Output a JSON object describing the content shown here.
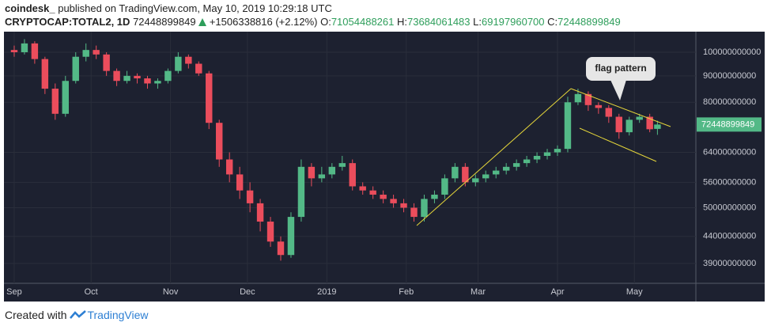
{
  "header": {
    "author": "coindesk_",
    "published": "published on TradingView.com, May 10, 2019 10:29:18 UTC",
    "symbol": "CRYPTOCAP:TOTAL2, 1D",
    "change": "+1506338816 (+2.12%)",
    "o_label": "O:",
    "h_label": "H:",
    "l_label": "L:",
    "c_label": "C:"
  },
  "chart_data": {
    "type": "candlestick",
    "log": true,
    "grid": true,
    "annotation": "flag pattern",
    "up_color": "#53b987",
    "down_color": "#eb4d5c",
    "x": [
      0,
      4,
      8,
      12,
      16,
      20,
      24,
      28,
      32,
      36,
      40,
      44,
      48,
      52,
      56,
      60,
      64,
      68,
      72,
      76,
      80,
      84,
      88,
      92,
      96,
      100,
      104,
      108,
      112,
      116,
      120,
      124,
      128,
      132,
      136,
      140,
      144,
      148,
      152,
      156,
      160,
      164,
      168,
      172,
      176,
      180,
      184,
      188,
      192,
      196,
      200,
      204,
      208,
      212,
      216,
      220,
      224,
      228,
      232,
      236,
      240,
      244,
      248,
      251
    ],
    "open": [
      101000000000,
      100000000000,
      104000000000,
      97000000000,
      85000000000,
      76000000000,
      88000000000,
      98000000000,
      101000000000,
      99000000000,
      92000000000,
      88000000000,
      90000000000,
      89000000000,
      87000000000,
      88000000000,
      92000000000,
      98000000000,
      95000000000,
      91000000000,
      73000000000,
      62000000000,
      58000000000,
      54000000000,
      51000000000,
      47000000000,
      43000000000,
      40500000000,
      48000000000,
      60000000000,
      57000000000,
      58000000000,
      60000000000,
      61000000000,
      55000000000,
      54000000000,
      53000000000,
      52000000000,
      51000000000,
      50000000000,
      48000000000,
      52000000000,
      53000000000,
      57000000000,
      60000000000,
      56000000000,
      57000000000,
      58000000000,
      59000000000,
      60000000000,
      61000000000,
      62000000000,
      63000000000,
      64000000000,
      65000000000,
      80000000000,
      83000000000,
      79000000000,
      78000000000,
      75000000000,
      70000000000,
      74000000000,
      75000000000,
      71054488261
    ],
    "high": [
      103000000000,
      106000000000,
      105000000000,
      98000000000,
      87000000000,
      90000000000,
      100000000000,
      104000000000,
      103000000000,
      100000000000,
      93000000000,
      92000000000,
      91000000000,
      90000000000,
      89000000000,
      93000000000,
      100000000000,
      99000000000,
      96000000000,
      92000000000,
      74000000000,
      64000000000,
      60000000000,
      56000000000,
      52000000000,
      48000000000,
      44000000000,
      49000000000,
      62000000000,
      61000000000,
      60000000000,
      61000000000,
      63000000000,
      62000000000,
      56000000000,
      55000000000,
      54000000000,
      53000000000,
      52000000000,
      51000000000,
      53000000000,
      54000000000,
      58000000000,
      61000000000,
      61000000000,
      58000000000,
      59000000000,
      60000000000,
      61000000000,
      62000000000,
      63000000000,
      64000000000,
      65000000000,
      66000000000,
      82000000000,
      85000000000,
      84000000000,
      80000000000,
      79000000000,
      76000000000,
      75000000000,
      76000000000,
      76000000000,
      73684061483
    ],
    "low": [
      98000000000,
      99000000000,
      95000000000,
      83000000000,
      74000000000,
      75000000000,
      87000000000,
      96000000000,
      97000000000,
      90000000000,
      86000000000,
      87000000000,
      87000000000,
      85000000000,
      85000000000,
      87000000000,
      91000000000,
      93000000000,
      90000000000,
      71000000000,
      60000000000,
      56000000000,
      52000000000,
      49000000000,
      45000000000,
      42000000000,
      39500000000,
      40000000000,
      47000000000,
      55000000000,
      56000000000,
      57000000000,
      59000000000,
      54000000000,
      53000000000,
      52000000000,
      51000000000,
      50000000000,
      49000000000,
      47000000000,
      47000000000,
      51000000000,
      52000000000,
      56000000000,
      55000000000,
      55000000000,
      56000000000,
      57000000000,
      58000000000,
      59000000000,
      60000000000,
      61000000000,
      62000000000,
      63000000000,
      64000000000,
      79000000000,
      77000000000,
      76000000000,
      73000000000,
      68000000000,
      69000000000,
      73000000000,
      70000000000,
      69197960700
    ],
    "close": [
      100000000000,
      104000000000,
      97000000000,
      85000000000,
      76000000000,
      88000000000,
      98000000000,
      101000000000,
      99000000000,
      92000000000,
      88000000000,
      90000000000,
      89000000000,
      87000000000,
      88000000000,
      92000000000,
      98000000000,
      95000000000,
      91000000000,
      73000000000,
      62000000000,
      58000000000,
      54000000000,
      51000000000,
      47000000000,
      43000000000,
      40500000000,
      48000000000,
      60000000000,
      57000000000,
      58000000000,
      60000000000,
      61000000000,
      55000000000,
      54000000000,
      53000000000,
      52000000000,
      51000000000,
      50000000000,
      48000000000,
      52000000000,
      53000000000,
      57000000000,
      60000000000,
      56000000000,
      57000000000,
      58000000000,
      59000000000,
      60000000000,
      61000000000,
      62000000000,
      63000000000,
      64000000000,
      65000000000,
      80000000000,
      83000000000,
      79000000000,
      78000000000,
      75000000000,
      70000000000,
      74000000000,
      75000000000,
      70942561033,
      72448899849
    ],
    "xlim": [
      -4,
      266
    ],
    "xticks": [
      {
        "value": 0,
        "label": "Sep"
      },
      {
        "value": 30,
        "label": "Oct"
      },
      {
        "value": 61,
        "label": "Nov"
      },
      {
        "value": 91,
        "label": "Dec"
      },
      {
        "value": 122,
        "label": "2019"
      },
      {
        "value": 153,
        "label": "Feb"
      },
      {
        "value": 181,
        "label": "Mar"
      },
      {
        "value": 212,
        "label": "Apr"
      },
      {
        "value": 242,
        "label": "May"
      }
    ],
    "ylim": [
      35700000000,
      109600000000
    ],
    "yticks": [
      100000000000,
      90000000000,
      80000000000,
      64000000000,
      56000000000,
      50000000000,
      44000000000,
      39000000000
    ]
  }
}
